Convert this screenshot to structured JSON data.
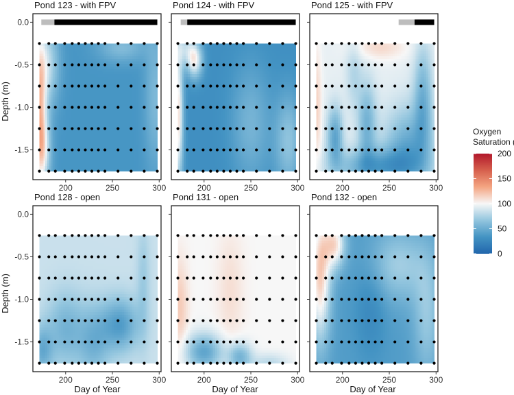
{
  "chart_data": {
    "type": "heatmap",
    "variable": "Oxygen Saturation (%)",
    "xlabel": "Day of Year",
    "ylabel": "Depth (m)",
    "xlim": [
      165,
      302
    ],
    "ylim": [
      -1.85,
      0.1
    ],
    "x_ticks": [
      200,
      250,
      300
    ],
    "x_tick_labels": [
      "200",
      "250",
      "300"
    ],
    "y_ticks": [
      0.0,
      -0.5,
      -1.0,
      -1.5
    ],
    "y_tick_labels": [
      "0.0",
      "-0.5",
      "-1.0",
      "-1.5"
    ],
    "sample_days": [
      172,
      182,
      189,
      199,
      207,
      214,
      221,
      228,
      235,
      242,
      256,
      270,
      284,
      298
    ],
    "sample_depths": [
      -0.25,
      -0.5,
      -0.75,
      -1.0,
      -1.25,
      -1.5,
      -1.75
    ],
    "legend": {
      "title_line1": "Oxygen",
      "title_line2": "Saturation (%)",
      "min": 0,
      "max": 200,
      "ticks": [
        0,
        50,
        100,
        150,
        200
      ],
      "tick_labels": [
        "0",
        "50",
        "100",
        "150",
        "200"
      ],
      "colors": [
        "#2166ac",
        "#4393c3",
        "#92c5de",
        "#f7f7f7",
        "#f4a582",
        "#d6604d",
        "#b2182b"
      ]
    },
    "panels": [
      {
        "title": "Pond 123 - with FPV",
        "cover_bar": {
          "partial": [
            174,
            188
          ],
          "full": [
            188,
            298
          ]
        },
        "field": {
          "base": 35,
          "blobs": [
            {
              "day": 172,
              "depth": -1.0,
              "value": 108,
              "sd_day": 5,
              "sd_depth": 0.6
            },
            {
              "day": 176,
              "depth": -1.5,
              "value": 85,
              "sd_day": 6,
              "sd_depth": 0.3
            },
            {
              "day": 180,
              "depth": -0.5,
              "value": 80,
              "sd_day": 9,
              "sd_depth": 0.35
            },
            {
              "day": 260,
              "depth": -0.3,
              "value": 60,
              "sd_day": 18,
              "sd_depth": 0.12
            },
            {
              "day": 296,
              "depth": -0.9,
              "value": 58,
              "sd_day": 8,
              "sd_depth": 0.6
            }
          ]
        }
      },
      {
        "title": "Pond 124 - with FPV",
        "cover_bar": {
          "partial": [
            175,
            182
          ],
          "full": [
            182,
            298
          ]
        },
        "field": {
          "base": 30,
          "blobs": [
            {
              "day": 190,
              "depth": -0.45,
              "value": 95,
              "sd_day": 6,
              "sd_depth": 0.15
            },
            {
              "day": 172,
              "depth": -1.1,
              "value": 110,
              "sd_day": 4,
              "sd_depth": 0.6
            },
            {
              "day": 250,
              "depth": -1.2,
              "value": 55,
              "sd_day": 15,
              "sd_depth": 0.5
            },
            {
              "day": 290,
              "depth": -1.4,
              "value": 65,
              "sd_day": 10,
              "sd_depth": 0.4
            },
            {
              "day": 180,
              "depth": -0.3,
              "value": 70,
              "sd_day": 8,
              "sd_depth": 0.15
            }
          ]
        }
      },
      {
        "title": "Pond 125 - with FPV",
        "cover_bar": {
          "partial": [
            260,
            277
          ],
          "full": [
            277,
            298
          ]
        },
        "field": {
          "base": 95,
          "blobs": [
            {
              "day": 192,
              "depth": -1.35,
              "value": 45,
              "sd_day": 6,
              "sd_depth": 0.25
            },
            {
              "day": 226,
              "depth": -1.2,
              "value": 55,
              "sd_day": 7,
              "sd_depth": 0.35
            },
            {
              "day": 270,
              "depth": -1.5,
              "value": 48,
              "sd_day": 18,
              "sd_depth": 0.35
            },
            {
              "day": 286,
              "depth": -0.9,
              "value": 55,
              "sd_day": 7,
              "sd_depth": 0.45
            },
            {
              "day": 235,
              "depth": -1.7,
              "value": 45,
              "sd_day": 30,
              "sd_depth": 0.15
            },
            {
              "day": 172,
              "depth": -1.0,
              "value": 115,
              "sd_day": 4,
              "sd_depth": 0.5
            },
            {
              "day": 240,
              "depth": -0.3,
              "value": 112,
              "sd_day": 20,
              "sd_depth": 0.1
            },
            {
              "day": 212,
              "depth": -0.6,
              "value": 78,
              "sd_day": 6,
              "sd_depth": 0.3
            }
          ]
        }
      },
      {
        "title": "Pond 128 - open",
        "cover_bar": null,
        "field": {
          "base": 85,
          "blobs": [
            {
              "day": 258,
              "depth": -1.3,
              "value": 40,
              "sd_day": 14,
              "sd_depth": 0.22
            },
            {
              "day": 200,
              "depth": -1.35,
              "value": 55,
              "sd_day": 14,
              "sd_depth": 0.3
            },
            {
              "day": 230,
              "depth": -1.5,
              "value": 55,
              "sd_day": 12,
              "sd_depth": 0.3
            },
            {
              "day": 175,
              "depth": -1.6,
              "value": 50,
              "sd_day": 8,
              "sd_depth": 0.2
            },
            {
              "day": 283,
              "depth": -0.8,
              "value": 70,
              "sd_day": 5,
              "sd_depth": 0.5
            }
          ]
        }
      },
      {
        "title": "Pond 131 - open",
        "cover_bar": null,
        "field": {
          "base": 100,
          "blobs": [
            {
              "day": 174,
              "depth": -1.1,
              "value": 118,
              "sd_day": 6,
              "sd_depth": 0.4
            },
            {
              "day": 228,
              "depth": -0.9,
              "value": 110,
              "sd_day": 10,
              "sd_depth": 0.5
            },
            {
              "day": 200,
              "depth": -1.62,
              "value": 45,
              "sd_day": 14,
              "sd_depth": 0.15
            },
            {
              "day": 238,
              "depth": -1.68,
              "value": 55,
              "sd_day": 9,
              "sd_depth": 0.12
            },
            {
              "day": 270,
              "depth": -1.75,
              "value": 80,
              "sd_day": 14,
              "sd_depth": 0.08
            }
          ]
        }
      },
      {
        "title": "Pond 132 - open",
        "cover_bar": null,
        "field": {
          "base": 40,
          "blobs": [
            {
              "day": 176,
              "depth": -0.7,
              "value": 118,
              "sd_day": 8,
              "sd_depth": 0.55
            },
            {
              "day": 192,
              "depth": -0.35,
              "value": 105,
              "sd_day": 8,
              "sd_depth": 0.2
            },
            {
              "day": 260,
              "depth": -0.6,
              "value": 72,
              "sd_day": 22,
              "sd_depth": 0.3
            },
            {
              "day": 290,
              "depth": -1.2,
              "value": 68,
              "sd_day": 10,
              "sd_depth": 0.5
            },
            {
              "day": 230,
              "depth": -1.1,
              "value": 25,
              "sd_day": 12,
              "sd_depth": 0.4
            }
          ]
        }
      }
    ]
  }
}
